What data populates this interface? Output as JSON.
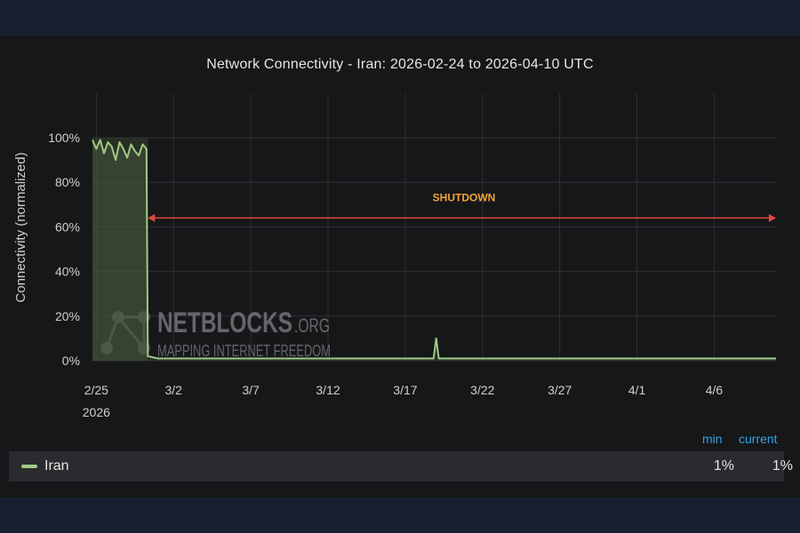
{
  "chart_data": {
    "type": "area",
    "title": "Network Connectivity - Iran: 2026-02-24 to 2026-04-10 UTC",
    "ylabel": "Connectivity (normalized)",
    "xlabel": "",
    "ylim": [
      0,
      100
    ],
    "y_ticks": [
      "0%",
      "20%",
      "40%",
      "60%",
      "80%",
      "100%"
    ],
    "x_ticks": [
      {
        "label": "2/25",
        "sublabel": "2026",
        "date": "2026-02-25"
      },
      {
        "label": "3/2",
        "date": "2026-03-02"
      },
      {
        "label": "3/7",
        "date": "2026-03-07"
      },
      {
        "label": "3/12",
        "date": "2026-03-12"
      },
      {
        "label": "3/17",
        "date": "2026-03-17"
      },
      {
        "label": "3/22",
        "date": "2026-03-22"
      },
      {
        "label": "3/27",
        "date": "2026-03-27"
      },
      {
        "label": "4/1",
        "date": "2026-04-01"
      },
      {
        "label": "4/6",
        "date": "2026-04-06"
      }
    ],
    "grid": true,
    "legend_position": "bottom",
    "series": [
      {
        "name": "Iran",
        "color": "#9fca84",
        "points": [
          [
            "2026-02-24T18:00",
            99
          ],
          [
            "2026-02-25T00:00",
            95
          ],
          [
            "2026-02-25T06:00",
            99
          ],
          [
            "2026-02-25T12:00",
            93
          ],
          [
            "2026-02-25T18:00",
            98
          ],
          [
            "2026-02-26T00:00",
            96
          ],
          [
            "2026-02-26T06:00",
            90
          ],
          [
            "2026-02-26T12:00",
            98
          ],
          [
            "2026-02-26T18:00",
            95
          ],
          [
            "2026-02-27T00:00",
            91
          ],
          [
            "2026-02-27T06:00",
            97
          ],
          [
            "2026-02-27T12:00",
            94
          ],
          [
            "2026-02-27T18:00",
            92
          ],
          [
            "2026-02-28T00:00",
            97
          ],
          [
            "2026-02-28T06:00",
            95
          ],
          [
            "2026-02-28T08:00",
            2
          ],
          [
            "2026-03-01T00:00",
            1
          ],
          [
            "2026-03-05T00:00",
            1
          ],
          [
            "2026-03-10T00:00",
            1
          ],
          [
            "2026-03-15T00:00",
            1
          ],
          [
            "2026-03-18T20:00",
            1
          ],
          [
            "2026-03-19T00:00",
            10
          ],
          [
            "2026-03-19T04:00",
            1
          ],
          [
            "2026-03-25T00:00",
            1
          ],
          [
            "2026-04-01T00:00",
            1
          ],
          [
            "2026-04-06T00:00",
            1
          ],
          [
            "2026-04-10T00:00",
            1
          ]
        ]
      }
    ],
    "annotation": {
      "text": "SHUTDOWN",
      "start_date": "2026-02-28T08:00",
      "end_date": "2026-04-10T00:00",
      "y": 64,
      "color": "#e0493a",
      "text_color": "#f2a33a"
    },
    "shaded_region": {
      "start_date": "2026-02-24T18:00",
      "end_date": "2026-02-28T08:00"
    }
  },
  "watermark": {
    "brand": "NETBLOCKS",
    "suffix": ".ORG",
    "tagline": "MAPPING INTERNET FREEDOM"
  },
  "legend": {
    "headers": {
      "min": "min",
      "current": "current"
    },
    "rows": [
      {
        "name": "Iran",
        "min": "1%",
        "current": "1%",
        "color": "#9fca84"
      }
    ]
  }
}
